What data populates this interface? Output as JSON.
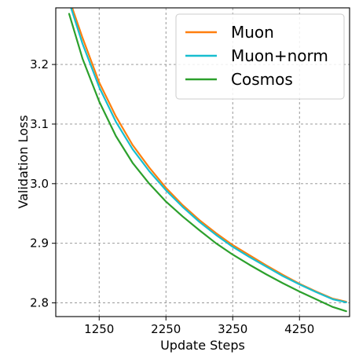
{
  "chart_data": {
    "type": "line",
    "xlabel": "Update Steps",
    "ylabel": "Validation Loss",
    "xlim": [
      600,
      5000
    ],
    "ylim": [
      2.777,
      3.295
    ],
    "xticks": [
      1250,
      2250,
      3250,
      4250
    ],
    "yticks": [
      2.8,
      2.9,
      3.0,
      3.1,
      3.2
    ],
    "grid": true,
    "legend_position": "upper-right",
    "series": [
      {
        "name": "Muon",
        "color": "#ff7f0e",
        "x": [
          800,
          1000,
          1250,
          1500,
          1750,
          2000,
          2250,
          2500,
          2750,
          3000,
          3250,
          3500,
          3750,
          4000,
          4250,
          4500,
          4750,
          4950
        ],
        "y": [
          3.31,
          3.245,
          3.17,
          3.113,
          3.065,
          3.027,
          2.993,
          2.964,
          2.939,
          2.917,
          2.897,
          2.88,
          2.863,
          2.847,
          2.832,
          2.819,
          2.807,
          2.802
        ]
      },
      {
        "name": "Muon+norm",
        "color": "#17becf",
        "x": [
          800,
          1000,
          1250,
          1500,
          1750,
          2000,
          2250,
          2500,
          2750,
          3000,
          3250,
          3500,
          3750,
          4000,
          4250,
          4500,
          4750,
          4950
        ],
        "y": [
          3.305,
          3.235,
          3.162,
          3.104,
          3.058,
          3.021,
          2.989,
          2.961,
          2.936,
          2.914,
          2.894,
          2.877,
          2.861,
          2.845,
          2.831,
          2.818,
          2.806,
          2.801
        ]
      },
      {
        "name": "Cosmos",
        "color": "#2ca02c",
        "x": [
          800,
          1000,
          1250,
          1500,
          1750,
          2000,
          2250,
          2500,
          2750,
          3000,
          3250,
          3500,
          3750,
          4000,
          4250,
          4500,
          4750,
          4950
        ],
        "y": [
          3.285,
          3.21,
          3.138,
          3.08,
          3.035,
          3.0,
          2.97,
          2.945,
          2.922,
          2.9,
          2.881,
          2.864,
          2.848,
          2.833,
          2.819,
          2.806,
          2.793,
          2.786
        ]
      }
    ]
  }
}
